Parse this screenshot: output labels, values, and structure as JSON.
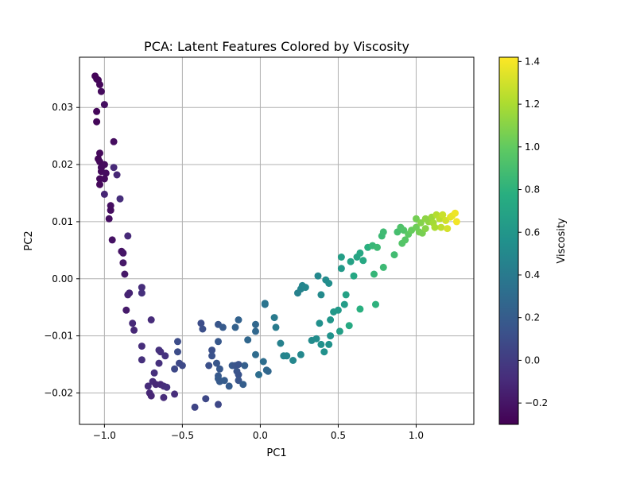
{
  "chart_data": {
    "type": "scatter",
    "title": "PCA: Latent Features Colored by Viscosity",
    "xlabel": "PC1",
    "ylabel": "PC2",
    "xlim": [
      -1.16,
      1.37
    ],
    "ylim": [
      -0.0255,
      0.0388
    ],
    "xticks": [
      -1.0,
      -0.5,
      0.0,
      0.5,
      1.0
    ],
    "xtick_labels": [
      "−1.0",
      "−0.5",
      "0.0",
      "0.5",
      "1.0"
    ],
    "yticks": [
      -0.02,
      -0.01,
      0.0,
      0.01,
      0.02,
      0.03
    ],
    "ytick_labels": [
      "−0.02",
      "−0.01",
      "0.00",
      "0.01",
      "0.02",
      "0.03"
    ],
    "grid": true,
    "colormap": "viridis",
    "colorbar": {
      "label": "Viscosity",
      "range": [
        -0.3,
        1.42
      ],
      "ticks": [
        -0.2,
        0.0,
        0.2,
        0.4,
        0.6,
        0.8,
        1.0,
        1.2,
        1.4
      ],
      "tick_labels": [
        "−0.2",
        "0.0",
        "0.2",
        "0.4",
        "0.6",
        "0.8",
        "1.0",
        "1.2",
        "1.4"
      ]
    },
    "series": [
      {
        "points": [
          [
            -1.06,
            0.0355,
            -0.28
          ],
          [
            -1.05,
            0.035,
            -0.28
          ],
          [
            -1.04,
            0.0348,
            -0.27
          ],
          [
            -1.03,
            0.034,
            -0.27
          ],
          [
            -1.02,
            0.0328,
            -0.25
          ],
          [
            -1.0,
            0.0305,
            -0.23
          ],
          [
            -1.05,
            0.0293,
            -0.27
          ],
          [
            -1.05,
            0.0275,
            -0.27
          ],
          [
            -0.94,
            0.024,
            -0.24
          ],
          [
            -1.03,
            0.022,
            -0.26
          ],
          [
            -1.04,
            0.021,
            -0.27
          ],
          [
            -1.03,
            0.0205,
            -0.26
          ],
          [
            -1.0,
            0.02,
            -0.25
          ],
          [
            -1.02,
            0.0195,
            -0.25
          ],
          [
            -0.94,
            0.0195,
            -0.1
          ],
          [
            -1.02,
            0.0188,
            -0.25
          ],
          [
            -0.99,
            0.0185,
            -0.24
          ],
          [
            -0.92,
            0.0182,
            -0.11
          ],
          [
            -1.03,
            0.0175,
            -0.26
          ],
          [
            -1.0,
            0.0175,
            -0.25
          ],
          [
            -1.03,
            0.0165,
            -0.26
          ],
          [
            -1.0,
            0.0148,
            -0.12
          ],
          [
            -0.9,
            0.014,
            -0.08
          ],
          [
            -0.96,
            0.0128,
            -0.23
          ],
          [
            -0.96,
            0.012,
            -0.24
          ],
          [
            -0.97,
            0.0105,
            -0.23
          ],
          [
            -0.85,
            0.0075,
            -0.1
          ],
          [
            -0.95,
            0.0068,
            -0.22
          ],
          [
            -0.89,
            0.0048,
            -0.21
          ],
          [
            -0.88,
            0.0045,
            -0.2
          ],
          [
            -0.88,
            0.0028,
            -0.19
          ],
          [
            -0.87,
            0.0008,
            -0.19
          ],
          [
            -0.85,
            -0.0028,
            -0.14
          ],
          [
            -0.84,
            -0.0025,
            -0.13
          ],
          [
            -0.76,
            -0.0015,
            -0.08
          ],
          [
            -0.76,
            -0.0025,
            -0.07
          ],
          [
            -0.86,
            -0.0055,
            -0.18
          ],
          [
            -0.82,
            -0.0078,
            -0.1
          ],
          [
            -0.81,
            -0.009,
            -0.11
          ],
          [
            -0.7,
            -0.0072,
            -0.09
          ],
          [
            -0.76,
            -0.0118,
            -0.08
          ],
          [
            -0.65,
            -0.0125,
            -0.06
          ],
          [
            -0.64,
            -0.0128,
            -0.06
          ],
          [
            -0.61,
            -0.0135,
            -0.05
          ],
          [
            -0.76,
            -0.0142,
            -0.07
          ],
          [
            -0.65,
            -0.0148,
            -0.06
          ],
          [
            -0.55,
            -0.0158,
            0.07
          ],
          [
            -0.52,
            -0.0148,
            0.07
          ],
          [
            -0.5,
            -0.0152,
            0.08
          ],
          [
            -0.68,
            -0.0165,
            -0.07
          ],
          [
            -0.72,
            -0.0188,
            -0.09
          ],
          [
            -0.69,
            -0.018,
            -0.1
          ],
          [
            -0.67,
            -0.0185,
            -0.11
          ],
          [
            -0.64,
            -0.0185,
            -0.1
          ],
          [
            -0.62,
            -0.0188,
            -0.08
          ],
          [
            -0.6,
            -0.019,
            -0.06
          ],
          [
            -0.71,
            -0.02,
            -0.11
          ],
          [
            -0.7,
            -0.0205,
            -0.12
          ],
          [
            -0.62,
            -0.0208,
            -0.09
          ],
          [
            -0.55,
            -0.0202,
            -0.08
          ],
          [
            -0.53,
            -0.011,
            0.1
          ],
          [
            -0.53,
            -0.0128,
            0.1
          ],
          [
            -0.42,
            -0.0225,
            0.05
          ],
          [
            -0.35,
            -0.021,
            0.07
          ],
          [
            -0.27,
            -0.022,
            0.07
          ],
          [
            -0.38,
            -0.0078,
            0.1
          ],
          [
            -0.37,
            -0.0088,
            0.11
          ],
          [
            -0.31,
            -0.0125,
            0.12
          ],
          [
            -0.31,
            -0.0135,
            0.13
          ],
          [
            -0.33,
            -0.0152,
            0.12
          ],
          [
            -0.27,
            -0.008,
            0.16
          ],
          [
            -0.27,
            -0.011,
            0.17
          ],
          [
            -0.28,
            -0.0148,
            0.16
          ],
          [
            -0.26,
            -0.0158,
            0.17
          ],
          [
            -0.27,
            -0.017,
            0.18
          ],
          [
            -0.26,
            -0.018,
            0.19
          ],
          [
            -0.27,
            -0.0175,
            0.19
          ],
          [
            -0.24,
            -0.0085,
            0.19
          ],
          [
            -0.23,
            -0.0178,
            0.2
          ],
          [
            -0.2,
            -0.0188,
            0.2
          ],
          [
            -0.18,
            -0.0152,
            0.18
          ],
          [
            -0.15,
            -0.0162,
            0.15
          ],
          [
            -0.14,
            -0.0168,
            0.14
          ],
          [
            -0.14,
            -0.0178,
            0.15
          ],
          [
            -0.16,
            -0.0085,
            0.23
          ],
          [
            -0.14,
            -0.0072,
            0.24
          ],
          [
            -0.16,
            -0.0152,
            0.15
          ],
          [
            -0.14,
            -0.015,
            0.14
          ],
          [
            -0.11,
            -0.0185,
            0.21
          ],
          [
            -0.1,
            -0.0152,
            0.22
          ],
          [
            -0.08,
            -0.0107,
            0.27
          ],
          [
            -0.03,
            -0.0133,
            0.3
          ],
          [
            -0.03,
            -0.008,
            0.27
          ],
          [
            -0.03,
            -0.0092,
            0.27
          ],
          [
            -0.01,
            -0.0168,
            0.32
          ],
          [
            0.02,
            -0.0145,
            0.32
          ],
          [
            0.04,
            -0.016,
            0.28
          ],
          [
            0.05,
            -0.0162,
            0.27
          ],
          [
            0.03,
            -0.0045,
            0.35
          ],
          [
            0.03,
            -0.0043,
            0.36
          ],
          [
            0.09,
            -0.0068,
            0.4
          ],
          [
            0.1,
            -0.0085,
            0.41
          ],
          [
            0.13,
            -0.0113,
            0.45
          ],
          [
            0.15,
            -0.0135,
            0.47
          ],
          [
            0.17,
            -0.0135,
            0.48
          ],
          [
            0.21,
            -0.0143,
            0.49
          ],
          [
            0.26,
            -0.0133,
            0.5
          ],
          [
            0.33,
            -0.0108,
            0.52
          ],
          [
            0.36,
            -0.0105,
            0.53
          ],
          [
            0.38,
            -0.0078,
            0.55
          ],
          [
            0.39,
            -0.0115,
            0.56
          ],
          [
            0.41,
            -0.0128,
            0.56
          ],
          [
            0.44,
            -0.0115,
            0.57
          ],
          [
            0.45,
            -0.01,
            0.57
          ],
          [
            0.45,
            -0.0072,
            0.6
          ],
          [
            0.47,
            -0.0058,
            0.61
          ],
          [
            0.5,
            -0.0055,
            0.62
          ],
          [
            0.54,
            -0.0045,
            0.64
          ],
          [
            0.55,
            -0.0028,
            0.68
          ],
          [
            0.51,
            -0.0092,
            0.66
          ],
          [
            0.57,
            -0.0082,
            0.74
          ],
          [
            0.64,
            -0.0053,
            0.78
          ],
          [
            0.74,
            -0.0045,
            0.8
          ],
          [
            0.24,
            -0.0025,
            0.45
          ],
          [
            0.26,
            -0.0018,
            0.46
          ],
          [
            0.27,
            -0.0012,
            0.48
          ],
          [
            0.29,
            -0.0015,
            0.49
          ],
          [
            0.37,
            0.0005,
            0.5
          ],
          [
            0.39,
            -0.0028,
            0.51
          ],
          [
            0.42,
            -0.0002,
            0.52
          ],
          [
            0.44,
            -0.0008,
            0.54
          ],
          [
            0.52,
            0.0018,
            0.62
          ],
          [
            0.52,
            0.0038,
            0.66
          ],
          [
            0.58,
            0.003,
            0.68
          ],
          [
            0.6,
            0.0005,
            0.72
          ],
          [
            0.62,
            0.0038,
            0.7
          ],
          [
            0.64,
            0.0045,
            0.72
          ],
          [
            0.66,
            0.0032,
            0.73
          ],
          [
            0.69,
            0.0055,
            0.78
          ],
          [
            0.72,
            0.0058,
            0.84
          ],
          [
            0.75,
            0.0055,
            0.86
          ],
          [
            0.78,
            0.0075,
            0.86
          ],
          [
            0.79,
            0.0082,
            0.87
          ],
          [
            0.73,
            0.0008,
            0.83
          ],
          [
            0.79,
            0.002,
            0.86
          ],
          [
            0.86,
            0.0042,
            0.88
          ],
          [
            0.88,
            0.0082,
            0.9
          ],
          [
            0.9,
            0.009,
            0.93
          ],
          [
            0.92,
            0.0085,
            0.94
          ],
          [
            0.91,
            0.0062,
            0.95
          ],
          [
            0.93,
            0.0068,
            0.96
          ],
          [
            0.95,
            0.0078,
            0.98
          ],
          [
            0.97,
            0.0085,
            1.01
          ],
          [
            1.0,
            0.0105,
            1.05
          ],
          [
            1.0,
            0.009,
            1.03
          ],
          [
            1.02,
            0.0082,
            1.05
          ],
          [
            1.03,
            0.0098,
            1.09
          ],
          [
            1.04,
            0.008,
            1.06
          ],
          [
            1.06,
            0.0088,
            1.1
          ],
          [
            1.08,
            0.01,
            1.13
          ],
          [
            1.1,
            0.0108,
            1.16
          ],
          [
            1.11,
            0.0098,
            1.18
          ],
          [
            1.13,
            0.0112,
            1.22
          ],
          [
            1.15,
            0.0105,
            1.24
          ],
          [
            1.16,
            0.009,
            1.25
          ],
          [
            1.17,
            0.0112,
            1.28
          ],
          [
            1.19,
            0.0102,
            1.3
          ],
          [
            1.2,
            0.0088,
            1.31
          ],
          [
            1.22,
            0.0108,
            1.34
          ],
          [
            1.23,
            0.011,
            1.36
          ],
          [
            1.25,
            0.0115,
            1.38
          ],
          [
            1.26,
            0.01,
            1.39
          ],
          [
            1.12,
            0.009,
            1.2
          ],
          [
            1.06,
            0.0105,
            1.12
          ]
        ]
      }
    ]
  }
}
